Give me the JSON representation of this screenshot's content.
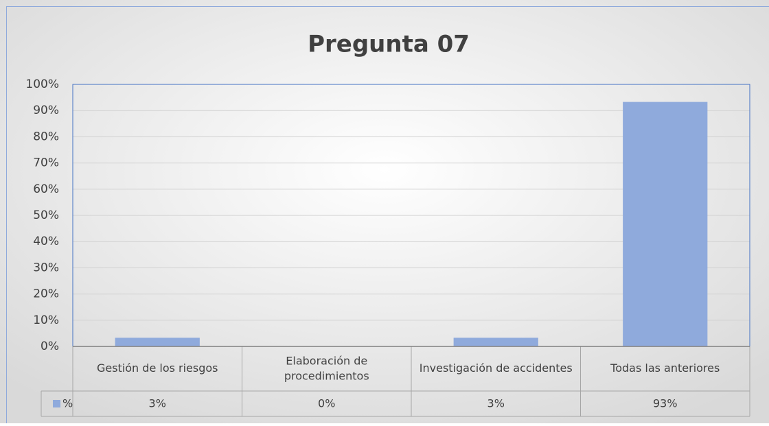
{
  "chart_data": {
    "type": "bar",
    "title": "Pregunta 07",
    "categories": [
      "Gestión de los riesgos",
      "Elaboración de procedimientos",
      "Investigación de accidentes",
      "Todas las anteriores"
    ],
    "series": [
      {
        "name": "%",
        "color": "#8faadc",
        "values": [
          3.3,
          0,
          3.3,
          93.3
        ],
        "value_labels": [
          "3%",
          "0%",
          "3%",
          "93%"
        ]
      }
    ],
    "ylim": [
      0,
      100
    ],
    "yticks": [
      {
        "value": 0,
        "label": "0%"
      },
      {
        "value": 10,
        "label": "10%"
      },
      {
        "value": 20,
        "label": "20%"
      },
      {
        "value": 30,
        "label": "30%"
      },
      {
        "value": 40,
        "label": "40%"
      },
      {
        "value": 50,
        "label": "50%"
      },
      {
        "value": 60,
        "label": "60%"
      },
      {
        "value": 70,
        "label": "70%"
      },
      {
        "value": 80,
        "label": "80%"
      },
      {
        "value": 90,
        "label": "90%"
      },
      {
        "value": 100,
        "label": "100%"
      }
    ],
    "grid": true
  }
}
